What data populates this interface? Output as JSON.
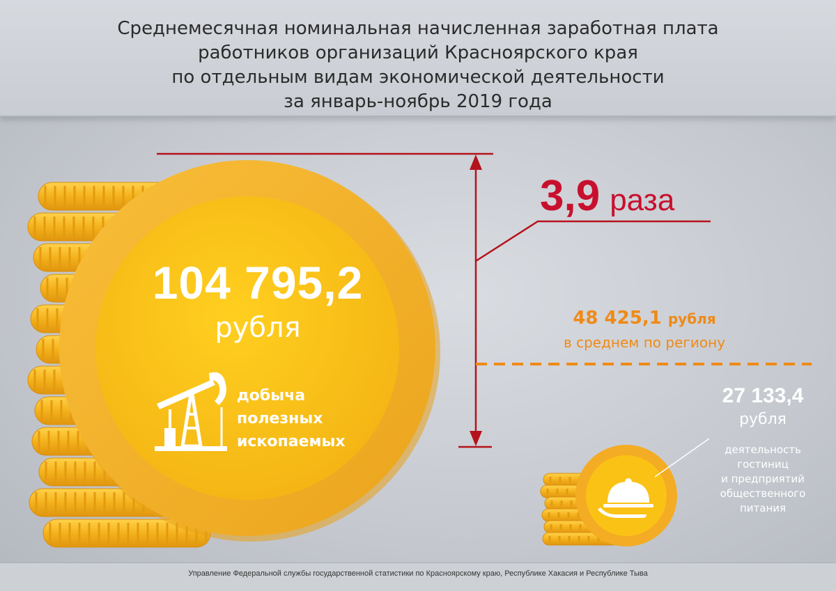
{
  "title": {
    "line1": "Среднемесячная номинальная начисленная заработная плата",
    "line2": "работников организаций Красноярского края",
    "line3": "по отдельным видам экономической деятельности",
    "line4": "за январь-ноябрь 2019 года"
  },
  "highest": {
    "value": "104 795,2",
    "unit": "рубля",
    "activity_line1": "добыча",
    "activity_line2": "полезных",
    "activity_line3": "ископаемых",
    "icon": "oil-pump-icon"
  },
  "ratio": {
    "value": "3,9",
    "word": "раза"
  },
  "average": {
    "value": "48 425,1",
    "unit": "рубля",
    "caption": "в среднем по региону"
  },
  "lowest": {
    "value": "27 133,4",
    "unit": "рубля",
    "activity_line1": "деятельность",
    "activity_line2": "гостиниц",
    "activity_line3": "и предприятий",
    "activity_line4": "общественного",
    "activity_line5": "питания",
    "icon": "cloche-icon"
  },
  "footer": {
    "source": "Управление Федеральной службы государственной статистики по Красноярскому краю, Республике Хакасия и Республике Тыва"
  },
  "colors": {
    "coin": "#f6b51f",
    "coin_inner": "#fbc415",
    "coin_edge": "#e89b12",
    "accent_red": "#c8102e",
    "accent_orange": "#ef8a17",
    "background": "#c9cdd3"
  }
}
